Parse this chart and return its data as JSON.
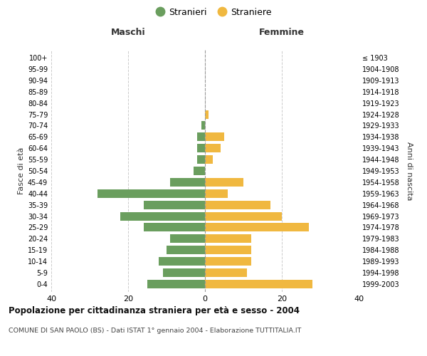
{
  "age_groups": [
    "0-4",
    "5-9",
    "10-14",
    "15-19",
    "20-24",
    "25-29",
    "30-34",
    "35-39",
    "40-44",
    "45-49",
    "50-54",
    "55-59",
    "60-64",
    "65-69",
    "70-74",
    "75-79",
    "80-84",
    "85-89",
    "90-94",
    "95-99",
    "100+"
  ],
  "birth_years": [
    "1999-2003",
    "1994-1998",
    "1989-1993",
    "1984-1988",
    "1979-1983",
    "1974-1978",
    "1969-1973",
    "1964-1968",
    "1959-1963",
    "1954-1958",
    "1949-1953",
    "1944-1948",
    "1939-1943",
    "1934-1938",
    "1929-1933",
    "1924-1928",
    "1919-1923",
    "1914-1918",
    "1909-1913",
    "1904-1908",
    "≤ 1903"
  ],
  "maschi": [
    15,
    11,
    12,
    10,
    9,
    16,
    22,
    16,
    28,
    9,
    3,
    2,
    2,
    2,
    1,
    0,
    0,
    0,
    0,
    0,
    0
  ],
  "femmine": [
    28,
    11,
    12,
    12,
    12,
    27,
    20,
    17,
    6,
    10,
    0,
    2,
    4,
    5,
    0,
    1,
    0,
    0,
    0,
    0,
    0
  ],
  "maschi_color": "#6a9e5e",
  "femmine_color": "#f0b840",
  "background_color": "#ffffff",
  "grid_color": "#cccccc",
  "title": "Popolazione per cittadinanza straniera per età e sesso - 2004",
  "subtitle": "COMUNE DI SAN PAOLO (BS) - Dati ISTAT 1° gennaio 2004 - Elaborazione TUTTITALIA.IT",
  "xlabel_left": "Maschi",
  "xlabel_right": "Femmine",
  "ylabel_left": "Fasce di età",
  "ylabel_right": "Anni di nascita",
  "legend_maschi": "Stranieri",
  "legend_femmine": "Straniere",
  "xlim": 40,
  "xticks": [
    -40,
    -20,
    0,
    20,
    40
  ],
  "xticklabels": [
    "40",
    "20",
    "0",
    "20",
    "40"
  ]
}
